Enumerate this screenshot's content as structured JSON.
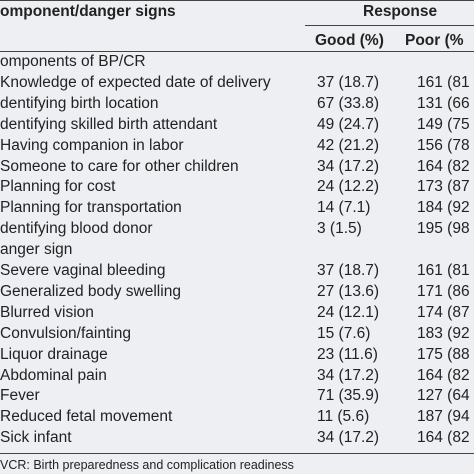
{
  "header": {
    "title": "omponent/danger signs",
    "response": "Response",
    "good": "Good (%)",
    "poor": "Poor (%"
  },
  "sections": [
    {
      "title": "omponents of BP/CR",
      "rows": [
        [
          "Knowledge of expected date of delivery",
          "37 (18.7)",
          "161 (81"
        ],
        [
          "dentifying birth location",
          "67 (33.8)",
          "131 (66"
        ],
        [
          "dentifying skilled birth attendant",
          "49 (24.7)",
          "149 (75"
        ],
        [
          "Having companion in labor",
          "42 (21.2)",
          "156 (78"
        ],
        [
          "Someone to care for other children",
          "34 (17.2)",
          "164 (82"
        ],
        [
          "Planning for cost",
          "24 (12.2)",
          "173 (87"
        ],
        [
          "Planning for transportation",
          "14 (7.1)",
          "184 (92"
        ],
        [
          "dentifying blood donor",
          "3 (1.5)",
          "195 (98"
        ]
      ]
    },
    {
      "title": "anger sign",
      "rows": [
        [
          "Severe vaginal bleeding",
          "37 (18.7)",
          "161 (81"
        ],
        [
          "Generalized body swelling",
          "27 (13.6)",
          "171 (86"
        ],
        [
          "Blurred vision",
          "24 (12.1)",
          "174 (87"
        ],
        [
          "Convulsion/fainting",
          "15 (7.6)",
          "183 (92"
        ],
        [
          "Liquor drainage",
          "23 (11.6)",
          "175 (88"
        ],
        [
          "Abdominal pain",
          "34 (17.2)",
          "164 (82"
        ],
        [
          "Fever",
          "71 (35.9)",
          "127 (64"
        ],
        [
          "Reduced fetal movement",
          "11 (5.6)",
          "187 (94"
        ],
        [
          "Sick infant",
          "34 (17.2)",
          "164 (82"
        ]
      ]
    }
  ],
  "footnote": "VCR: Birth preparedness and complication readiness"
}
